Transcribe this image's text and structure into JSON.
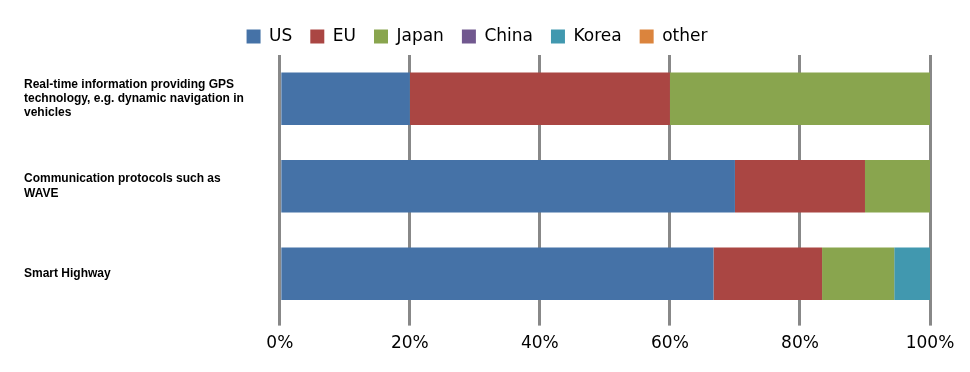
{
  "chart_data": {
    "type": "bar",
    "orientation": "horizontal",
    "stacked": true,
    "categories": [
      [
        "Real-time information providing GPS",
        "technology, e.g. dynamic navigation in",
        "vehicles"
      ],
      [
        "Communication protocols such as",
        "WAVE"
      ],
      [
        "Smart Highway"
      ]
    ],
    "series": [
      {
        "name": "US",
        "color": "#4572a7",
        "values": [
          20,
          70,
          66.7
        ]
      },
      {
        "name": "EU",
        "color": "#aa4643",
        "values": [
          40,
          20,
          16.7
        ]
      },
      {
        "name": "Japan",
        "color": "#89a54e",
        "values": [
          40,
          10,
          11.1
        ]
      },
      {
        "name": "China",
        "color": "#71588f",
        "values": [
          0,
          0,
          0
        ]
      },
      {
        "name": "Korea",
        "color": "#4198af",
        "values": [
          0,
          0,
          5.5
        ]
      },
      {
        "name": "other",
        "color": "#db843d",
        "values": [
          0,
          0,
          0
        ]
      }
    ],
    "xlim": [
      0,
      100
    ],
    "xticks": [
      {
        "value": 0,
        "label": "0%"
      },
      {
        "value": 20,
        "label": "20%"
      },
      {
        "value": 40,
        "label": "40%"
      },
      {
        "value": 60,
        "label": "60%"
      },
      {
        "value": 80,
        "label": "80%"
      },
      {
        "value": 100,
        "label": "100%"
      }
    ],
    "grid": true,
    "legend": "top"
  }
}
